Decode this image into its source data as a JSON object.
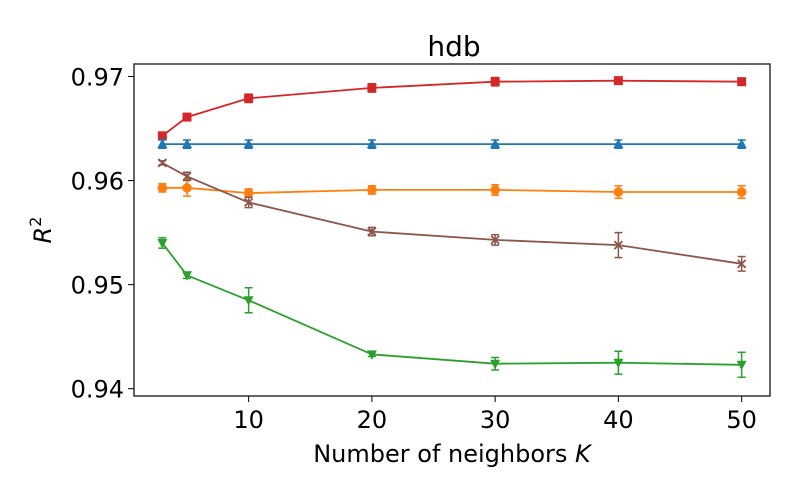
{
  "chart_data": {
    "type": "line",
    "title": "hdb",
    "xlabel": "Number of neighbors K",
    "ylabel": "R^2",
    "xlim": [
      0.7,
      52.3
    ],
    "ylim": [
      0.9393,
      0.9712
    ],
    "xticks": [
      10,
      20,
      30,
      40,
      50
    ],
    "xtick_labels": [
      "10",
      "20",
      "30",
      "40",
      "50"
    ],
    "yticks": [
      0.94,
      0.95,
      0.96,
      0.97
    ],
    "ytick_labels": [
      "0.94",
      "0.95",
      "0.96",
      "0.97"
    ],
    "grid": false,
    "x": [
      3,
      5,
      10,
      20,
      30,
      40,
      50
    ],
    "series": [
      {
        "color": "#d62728",
        "marker": "square",
        "values": [
          0.9643,
          0.9661,
          0.9679,
          0.9689,
          0.9695,
          0.9696,
          0.9695
        ],
        "errors": [
          0.0002,
          0.0002,
          0.0004,
          0.0004,
          0.0004,
          0.0002,
          0.0003
        ]
      },
      {
        "color": "#1f77b4",
        "marker": "triangle-up",
        "values": [
          0.9635,
          0.9635,
          0.9635,
          0.9635,
          0.9635,
          0.9635,
          0.9635
        ],
        "errors": [
          0.0004,
          0.0004,
          0.0004,
          0.0004,
          0.0004,
          0.0004,
          0.0004
        ]
      },
      {
        "color": "#ff7f0e",
        "marker": "circle",
        "values": [
          0.9593,
          0.9593,
          0.9588,
          0.9591,
          0.9591,
          0.9589,
          0.9589
        ],
        "errors": [
          0.0004,
          0.0008,
          0.0004,
          0.0004,
          0.0005,
          0.0006,
          0.0006
        ]
      },
      {
        "color": "#8c564b",
        "marker": "x",
        "values": [
          0.9617,
          0.9604,
          0.9579,
          0.9551,
          0.9543,
          0.9538,
          0.952
        ],
        "errors": [
          0.0002,
          0.0004,
          0.0005,
          0.0004,
          0.0005,
          0.0012,
          0.0007
        ]
      },
      {
        "color": "#2ca02c",
        "marker": "triangle-down",
        "values": [
          0.954,
          0.9509,
          0.9485,
          0.9433,
          0.9424,
          0.9425,
          0.9423
        ],
        "errors": [
          0.0005,
          0.0003,
          0.0012,
          0.0002,
          0.0006,
          0.0011,
          0.0012
        ]
      }
    ]
  }
}
